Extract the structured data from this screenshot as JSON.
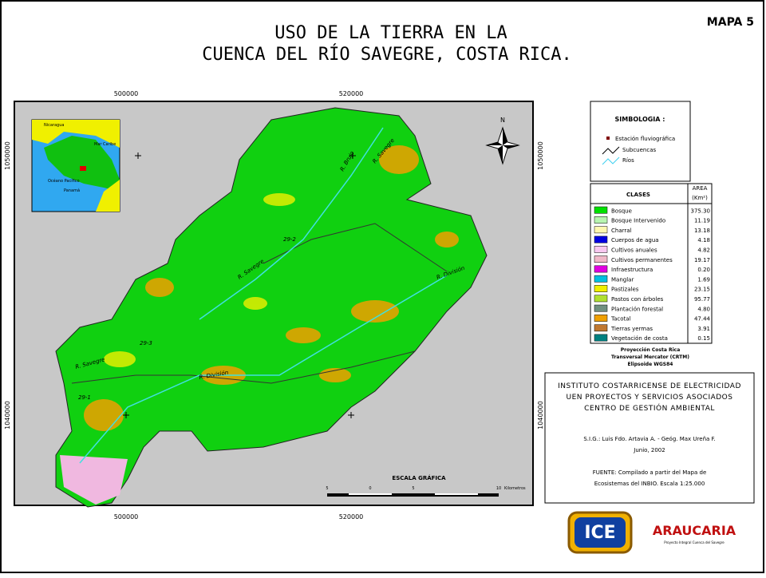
{
  "header": {
    "title_line1": "USO DE LA TIERRA EN LA",
    "title_line2": "CUENCA DEL RÍO SAVEGRE, COSTA RICA.",
    "map_number": "MAPA 5"
  },
  "coordinates": {
    "x_top": [
      "500000",
      "520000"
    ],
    "x_bottom": [
      "500000",
      "520000"
    ],
    "y_left": [
      "1050000",
      "1040000"
    ],
    "y_right": [
      "1050000",
      "1040000"
    ]
  },
  "map_labels": {
    "rivers": [
      "R. Savegre",
      "R. División",
      "R. Brujo",
      "R. Savegre",
      "R. División",
      "R. Savegre"
    ],
    "stations": [
      "29-2",
      "29-3",
      "29-1"
    ],
    "north": "N",
    "scale_title": "ESCALA GRÁFICA",
    "scale_ticks": [
      "5",
      "0",
      "5",
      "10",
      "Kilometros"
    ],
    "inset": [
      "Nicaragua",
      "Mar Caribe",
      "Océano Pacífico",
      "Panamá"
    ]
  },
  "legend": {
    "title": "SIMBOLOGIA :",
    "items": [
      "Estación fluviográfica",
      "Subcuencas",
      "Ríos"
    ]
  },
  "table": {
    "header": [
      "CLASES",
      "AREA",
      "(Km²)"
    ],
    "rows": [
      {
        "label": "Bosque",
        "area": "375.30",
        "color": "#00e000"
      },
      {
        "label": "Bosque Intervenido",
        "area": "11.19",
        "color": "#b8f5b0"
      },
      {
        "label": "Charral",
        "area": "13.18",
        "color": "#fff8b0"
      },
      {
        "label": "Cuerpos de agua",
        "area": "4.18",
        "color": "#0000e0"
      },
      {
        "label": "Cultivos anuales",
        "area": "4.82",
        "color": "#f8c8f0"
      },
      {
        "label": "Cultivos permanentes",
        "area": "19.17",
        "color": "#f0b8c8"
      },
      {
        "label": "Infraestructura",
        "area": "0.20",
        "color": "#e000e0"
      },
      {
        "label": "Manglar",
        "area": "1.69",
        "color": "#00c0e0"
      },
      {
        "label": "Pastizales",
        "area": "23.15",
        "color": "#f0f000"
      },
      {
        "label": "Pastos con árboles",
        "area": "95.77",
        "color": "#b0e030"
      },
      {
        "label": "Plantación forestal",
        "area": "4.80",
        "color": "#709080"
      },
      {
        "label": "Tacotal",
        "area": "47.44",
        "color": "#f0a000"
      },
      {
        "label": "Tierras yermas",
        "area": "3.91",
        "color": "#c07830"
      },
      {
        "label": "Vegetación de costa",
        "area": "0.15",
        "color": "#008080"
      }
    ]
  },
  "projection": [
    "Proyección Costa Rica",
    "Transversal Mercator (CRTM)",
    "Elipsoide WGS84"
  ],
  "credits": {
    "institution": [
      "INSTITUTO COSTARRICENSE DE ELECTRICIDAD",
      "UEN PROYECTOS Y SERVICIOS ASOCIADOS",
      "CENTRO DE GESTIÓN AMBIENTAL"
    ],
    "authors": "S.I.G.: Luis Fdo. Artavia A. - Geóg. Max Ureña F.",
    "date": "Junio, 2002",
    "source": [
      "FUENTE: Compilado a partir del Mapa de",
      "Ecosistemas del INBIO. Escala 1:25.000"
    ]
  },
  "logos": {
    "ice": "ICE",
    "araucaria": "ARAUCARIA",
    "araucaria_sub": "Proyecto Integral Cuenca del Savegre"
  }
}
